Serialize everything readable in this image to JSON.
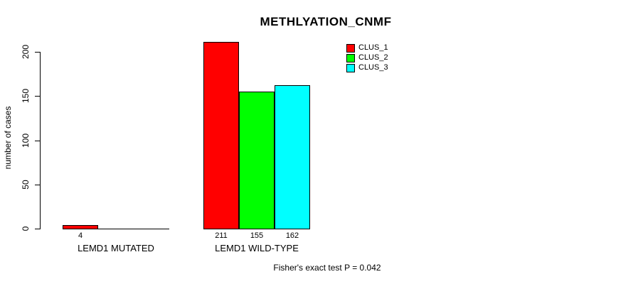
{
  "chart_data": {
    "type": "bar",
    "title": "METHLYATION_CNMF",
    "xlabel": "",
    "ylabel": "number of cases",
    "yticks": [
      0,
      50,
      100,
      150,
      200
    ],
    "ylim": [
      0,
      211
    ],
    "grid": false,
    "legend_position": "top-right",
    "categories": [
      "LEMD1 MUTATED",
      "LEMD1 WILD-TYPE"
    ],
    "series": [
      {
        "name": "CLUS_1",
        "color": "#ff0000",
        "values": [
          4,
          211
        ]
      },
      {
        "name": "CLUS_2",
        "color": "#00ff00",
        "values": [
          0,
          155
        ]
      },
      {
        "name": "CLUS_3",
        "color": "#00ffff",
        "values": [
          0,
          162
        ]
      }
    ],
    "bar_value_labels": [
      "4",
      "211",
      "155",
      "162"
    ],
    "footnote": "Fisher's exact test P = 0.042"
  },
  "colors": {
    "clus_1": "#ff0000",
    "clus_2": "#00ff00",
    "clus_3": "#00ffff",
    "axis": "#000000",
    "background": "#ffffff"
  }
}
